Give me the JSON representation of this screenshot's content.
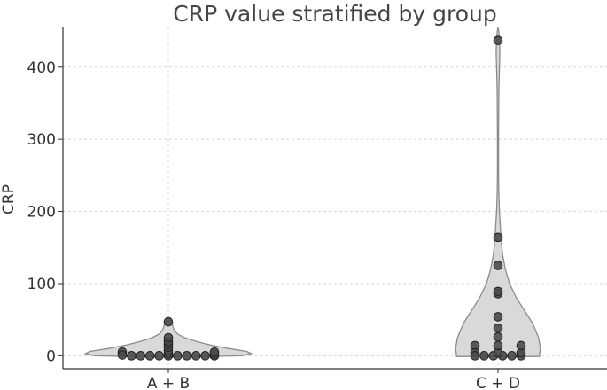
{
  "chart_data": {
    "type": "violin",
    "title": "CRP value stratified by group",
    "xlabel": "",
    "ylabel": "CRP",
    "ylim": [
      -18,
      455
    ],
    "yticks": [
      0,
      100,
      200,
      300,
      400
    ],
    "grid": true,
    "categories": [
      "A + B",
      "C + D"
    ],
    "series": [
      {
        "name": "A + B",
        "points": [
          {
            "x": -0.1,
            "y": 5
          },
          {
            "x": -0.1,
            "y": 1
          },
          {
            "x": -0.08,
            "y": 0
          },
          {
            "x": -0.06,
            "y": 0
          },
          {
            "x": -0.04,
            "y": 0
          },
          {
            "x": -0.02,
            "y": 0
          },
          {
            "x": 0.0,
            "y": 0
          },
          {
            "x": 0.02,
            "y": 0
          },
          {
            "x": 0.04,
            "y": 0
          },
          {
            "x": 0.06,
            "y": 0
          },
          {
            "x": 0.08,
            "y": 0
          },
          {
            "x": 0.1,
            "y": 0
          },
          {
            "x": 0.1,
            "y": 2
          },
          {
            "x": 0.1,
            "y": 5
          },
          {
            "x": 0.0,
            "y": 3
          },
          {
            "x": 0.0,
            "y": 7
          },
          {
            "x": 0.0,
            "y": 12
          },
          {
            "x": 0.0,
            "y": 16
          },
          {
            "x": 0.0,
            "y": 20
          },
          {
            "x": 0.0,
            "y": 25
          },
          {
            "x": 0.0,
            "y": 47
          }
        ],
        "violin": {
          "y": [
            -1,
            0,
            3,
            6,
            10,
            15,
            20,
            25,
            30,
            35,
            40,
            45,
            48,
            51
          ],
          "w": [
            0.09,
            0.16,
            0.18,
            0.17,
            0.13,
            0.09,
            0.06,
            0.035,
            0.02,
            0.013,
            0.01,
            0.008,
            0.005,
            0.0
          ]
        }
      },
      {
        "name": "C + D",
        "points": [
          {
            "x": -0.05,
            "y": 14
          },
          {
            "x": -0.05,
            "y": 4
          },
          {
            "x": -0.05,
            "y": 0
          },
          {
            "x": -0.03,
            "y": 0
          },
          {
            "x": -0.01,
            "y": 0
          },
          {
            "x": 0.01,
            "y": 0
          },
          {
            "x": 0.03,
            "y": 0
          },
          {
            "x": 0.05,
            "y": 0
          },
          {
            "x": 0.05,
            "y": 4
          },
          {
            "x": 0.05,
            "y": 14
          },
          {
            "x": 0.0,
            "y": 4
          },
          {
            "x": 0.0,
            "y": 14
          },
          {
            "x": 0.0,
            "y": 26
          },
          {
            "x": 0.0,
            "y": 38
          },
          {
            "x": 0.0,
            "y": 54
          },
          {
            "x": 0.0,
            "y": 86
          },
          {
            "x": 0.0,
            "y": 89
          },
          {
            "x": 0.0,
            "y": 125
          },
          {
            "x": 0.0,
            "y": 164
          },
          {
            "x": 0.0,
            "y": 437
          }
        ],
        "violin": {
          "y": [
            -1,
            0,
            10,
            25,
            45,
            60,
            80,
            100,
            120,
            140,
            160,
            180,
            200,
            230,
            260,
            300,
            340,
            370,
            400,
            420,
            440,
            450,
            455
          ],
          "w": [
            0.09,
            0.09,
            0.092,
            0.088,
            0.075,
            0.06,
            0.04,
            0.025,
            0.016,
            0.01,
            0.007,
            0.005,
            0.003,
            0.0015,
            0.0012,
            0.0012,
            0.0015,
            0.002,
            0.003,
            0.004,
            0.003,
            0.0015,
            0.0
          ]
        }
      }
    ],
    "colors": {
      "violin_fill": "#d9d9d9",
      "violin_stroke": "#8c8c8c",
      "point_fill": "#4a4a4a",
      "point_stroke": "#222222",
      "grid": "#d8d8d8",
      "axis": "#333333"
    }
  }
}
